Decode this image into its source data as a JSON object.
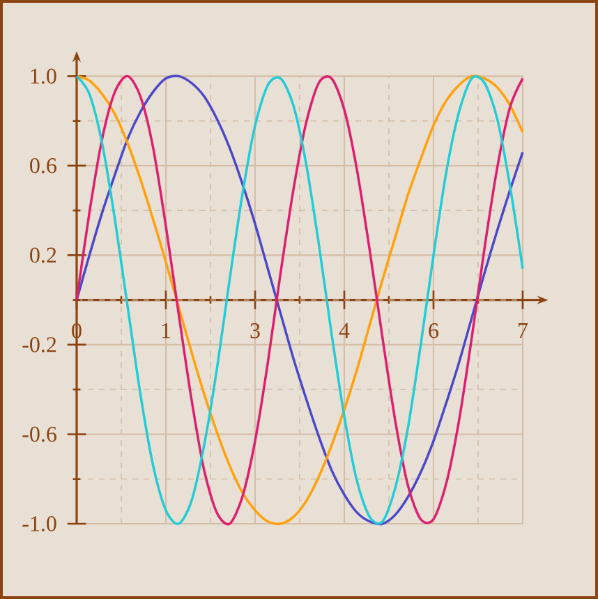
{
  "chart_data": {
    "type": "line",
    "x": [
      0,
      0.2,
      0.4,
      0.6,
      0.8,
      1.0,
      1.2,
      1.4,
      1.6,
      1.8,
      2.0,
      2.2,
      2.4,
      2.6,
      2.8,
      3.0,
      3.2,
      3.4,
      3.6,
      3.8,
      4.0,
      4.2,
      4.4,
      4.6,
      4.8,
      5.0,
      5.2,
      5.4,
      5.6,
      5.8,
      6.0,
      6.2,
      6.4,
      6.6,
      6.8,
      7.0
    ],
    "series": [
      {
        "color": "#4b48c8",
        "values": [
          0,
          0.2,
          0.39,
          0.56,
          0.72,
          0.84,
          0.93,
          0.99,
          1.0,
          0.97,
          0.91,
          0.81,
          0.68,
          0.52,
          0.34,
          0.14,
          -0.06,
          -0.26,
          -0.44,
          -0.61,
          -0.76,
          -0.87,
          -0.95,
          -0.99,
          -1.0,
          -0.96,
          -0.88,
          -0.77,
          -0.63,
          -0.46,
          -0.28,
          -0.08,
          0.12,
          0.31,
          0.49,
          0.66
        ]
      },
      {
        "color": "#ffa10a",
        "values": [
          1,
          0.98,
          0.92,
          0.83,
          0.7,
          0.54,
          0.36,
          0.17,
          -0.03,
          -0.23,
          -0.42,
          -0.59,
          -0.74,
          -0.86,
          -0.94,
          -0.99,
          -1.0,
          -0.97,
          -0.9,
          -0.79,
          -0.65,
          -0.49,
          -0.31,
          -0.11,
          0.09,
          0.28,
          0.47,
          0.63,
          0.78,
          0.89,
          0.96,
          1.0,
          0.99,
          0.95,
          0.87,
          0.75
        ]
      },
      {
        "color": "#dc1f6e",
        "values": [
          0,
          0.39,
          0.72,
          0.93,
          1.0,
          0.91,
          0.68,
          0.33,
          -0.06,
          -0.44,
          -0.76,
          -0.95,
          -1.0,
          -0.88,
          -0.63,
          -0.28,
          0.12,
          0.49,
          0.79,
          0.97,
          0.99,
          0.85,
          0.58,
          0.22,
          -0.17,
          -0.54,
          -0.83,
          -0.98,
          -0.98,
          -0.82,
          -0.54,
          -0.17,
          0.23,
          0.59,
          0.86,
          0.99
        ]
      },
      {
        "color": "#22ccd6",
        "values": [
          1,
          0.92,
          0.7,
          0.36,
          -0.03,
          -0.42,
          -0.74,
          -0.94,
          -1.0,
          -0.9,
          -0.65,
          -0.31,
          0.09,
          0.47,
          0.78,
          0.96,
          0.99,
          0.87,
          0.61,
          0.25,
          -0.15,
          -0.52,
          -0.81,
          -0.97,
          -0.99,
          -0.84,
          -0.57,
          -0.2,
          0.2,
          0.57,
          0.84,
          0.99,
          0.97,
          0.81,
          0.51,
          0.14
        ]
      }
    ],
    "xlim": [
      0,
      7
    ],
    "ylim": [
      -1,
      1
    ],
    "xticks": [
      0,
      {
        "value": 0.7,
        "label": null
      },
      {
        "value": 1.4,
        "label": "1"
      },
      {
        "value": 2.1,
        "label": null
      },
      {
        "value": 2.8,
        "label": "3"
      },
      {
        "value": 3.5,
        "label": null
      },
      {
        "value": 4.2,
        "label": "4"
      },
      {
        "value": 4.9,
        "label": null
      },
      {
        "value": 5.6,
        "label": "6"
      },
      {
        "value": 6.3,
        "label": null
      },
      7
    ],
    "yticks": [
      {
        "value": -1,
        "label": "-1.0"
      },
      {
        "value": -0.8,
        "label": null
      },
      -0.6,
      {
        "value": -0.4,
        "label": null
      },
      -0.2,
      {
        "value": 0,
        "label": null
      },
      0.2,
      {
        "value": 0.4,
        "label": null
      },
      0.6,
      {
        "value": 0.8,
        "label": null
      },
      {
        "value": 1,
        "label": "1.0"
      }
    ],
    "grid": true,
    "line_style": "solid"
  }
}
